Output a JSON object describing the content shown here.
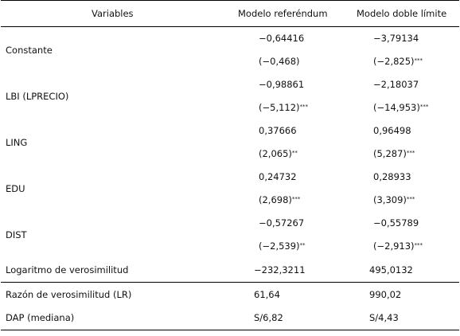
{
  "headers": [
    "Variables",
    "Modelo referéndum",
    "Modelo doble límite"
  ],
  "rows": [
    {
      "label": "Constante",
      "ref_coef": "−0,64416",
      "ref_t": "(−0,468)",
      "ref_stars": "",
      "db_coef": "−3,79134",
      "db_t": "(−2,825)",
      "db_stars": "***"
    },
    {
      "label": "LBI (LPRECIO)",
      "ref_coef": "−0,98861",
      "ref_t": "(−5,112)",
      "ref_stars": "***",
      "db_coef": "−2,18037",
      "db_t": "(−14,953)",
      "db_stars": "***"
    },
    {
      "label": "LING",
      "ref_coef": "0,37666",
      "ref_t": "(2,065)",
      "ref_stars": "**",
      "db_coef": "0,96498",
      "db_t": "(5,287)",
      "db_stars": "***"
    },
    {
      "label": "EDU",
      "ref_coef": "0,24732",
      "ref_t": "(2,698)",
      "ref_stars": "***",
      "db_coef": "0,28933",
      "db_t": "(3,309)",
      "db_stars": "***"
    },
    {
      "label": "DIST",
      "ref_coef": "−0,57267",
      "ref_t": "(−2,539)",
      "ref_stars": "**",
      "db_coef": "−0,55789",
      "db_t": "(−2,913)",
      "db_stars": "***"
    }
  ],
  "summary": [
    {
      "label": "Logaritmo de verosimilitud",
      "ref": "−232,3211",
      "db": "495,0132"
    },
    {
      "label": "Razón de verosimilitud (LR)",
      "ref": "61,64",
      "db": "990,02"
    },
    {
      "label": "DAP (mediana)",
      "ref": "S/6,82",
      "db": "S/4,43"
    }
  ]
}
